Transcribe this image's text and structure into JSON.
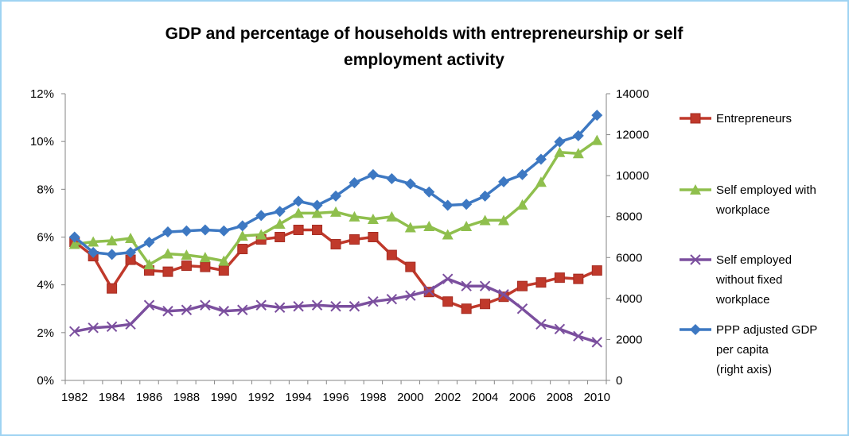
{
  "colors": {
    "frame": "#9fd3f2",
    "axis": "#868686",
    "entrepreneurs": "#c0392b",
    "self_with_workplace": "#8fbf4d",
    "self_without_workplace": "#7b4f9e",
    "gdp": "#3d78c2"
  },
  "chart_data": {
    "type": "line",
    "title_lines": [
      "GDP and percentage of households with entrepreneurship or self",
      "employment activity"
    ],
    "x": [
      1982,
      1983,
      1984,
      1985,
      1986,
      1987,
      1988,
      1989,
      1990,
      1991,
      1992,
      1993,
      1994,
      1995,
      1996,
      1997,
      1998,
      1999,
      2000,
      2001,
      2002,
      2003,
      2004,
      2005,
      2006,
      2007,
      2008,
      2009,
      2010
    ],
    "x_tick_labels": [
      "1982",
      "1984",
      "1986",
      "1988",
      "1990",
      "1992",
      "1994",
      "1996",
      "1998",
      "2000",
      "2002",
      "2004",
      "2006",
      "2008",
      "2010"
    ],
    "y_left": {
      "range": [
        0,
        12
      ],
      "unit": "%",
      "tick_labels": [
        "0%",
        "2%",
        "4%",
        "6%",
        "8%",
        "10%",
        "12%"
      ]
    },
    "y_right": {
      "range": [
        0,
        14000
      ],
      "tick_labels": [
        "0",
        "2000",
        "4000",
        "6000",
        "8000",
        "10000",
        "12000",
        "14000"
      ]
    },
    "grid": false,
    "legend_position": "right",
    "series": [
      {
        "key": "entrepreneurs",
        "name_lines": [
          "Entrepreneurs"
        ],
        "axis": "left",
        "marker": "square",
        "values": [
          5.8,
          5.2,
          3.85,
          5.05,
          4.6,
          4.55,
          4.8,
          4.75,
          4.6,
          5.5,
          5.9,
          6.0,
          6.3,
          6.3,
          5.7,
          5.9,
          6.0,
          5.25,
          4.75,
          3.7,
          3.3,
          3.0,
          3.2,
          3.5,
          3.95,
          4.1,
          4.3,
          4.25,
          4.6
        ]
      },
      {
        "key": "self_with_workplace",
        "name_lines": [
          "Self employed with",
          "workplace"
        ],
        "axis": "left",
        "marker": "triangle",
        "values": [
          5.7,
          5.8,
          5.85,
          5.95,
          4.85,
          5.3,
          5.25,
          5.15,
          5.0,
          6.05,
          6.1,
          6.55,
          7.0,
          7.0,
          7.05,
          6.85,
          6.75,
          6.85,
          6.4,
          6.45,
          6.1,
          6.45,
          6.7,
          6.7,
          7.35,
          8.3,
          9.55,
          9.5,
          10.05
        ]
      },
      {
        "key": "self_without_workplace",
        "name_lines": [
          "Self employed",
          "without fixed",
          "workplace"
        ],
        "axis": "left",
        "marker": "x",
        "values": [
          2.05,
          2.2,
          2.25,
          2.35,
          3.15,
          2.9,
          2.95,
          3.15,
          2.9,
          2.95,
          3.15,
          3.05,
          3.1,
          3.15,
          3.1,
          3.1,
          3.3,
          3.4,
          3.55,
          3.75,
          4.25,
          3.95,
          3.95,
          3.6,
          3.0,
          2.35,
          2.15,
          1.85,
          1.6
        ]
      },
      {
        "key": "gdp",
        "name_lines": [
          "PPP adjusted GDP",
          "per capita",
          "(right axis)"
        ],
        "axis": "right",
        "marker": "diamond",
        "values": [
          7000,
          6250,
          6150,
          6250,
          6750,
          7250,
          7300,
          7350,
          7300,
          7550,
          8050,
          8250,
          8750,
          8550,
          9000,
          9650,
          10050,
          9850,
          9600,
          9200,
          8550,
          8600,
          9000,
          9700,
          10050,
          10800,
          11650,
          11950,
          12950
        ]
      }
    ]
  }
}
